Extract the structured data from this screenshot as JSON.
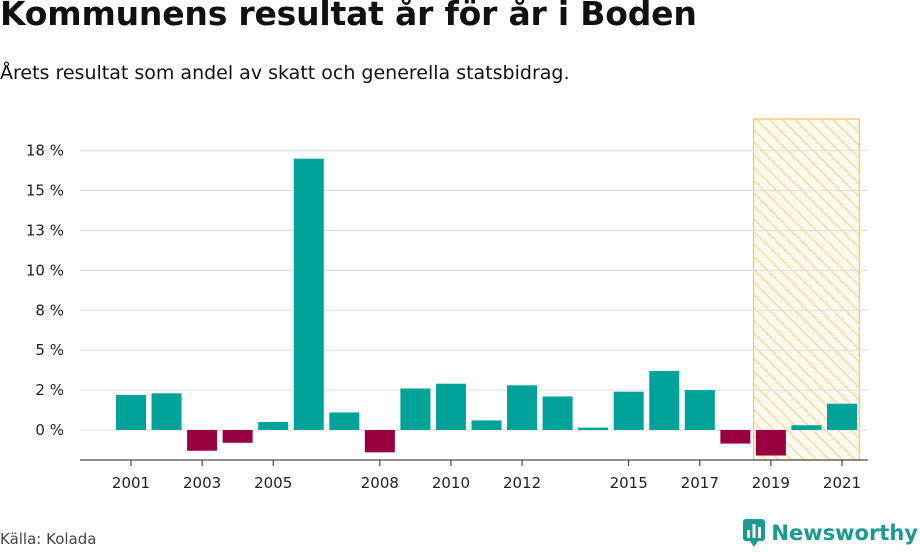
{
  "header": {
    "title": "Kommunens resultat år för år i Boden",
    "subtitle": "Årets resultat som andel av skatt och generella statsbidrag."
  },
  "footer": {
    "source": "Källa: Kolada",
    "brand": "Newsworthy"
  },
  "colors": {
    "positive": "#00a39a",
    "negative": "#990040",
    "highlight": "#f7c35c",
    "grid": "#dddddd"
  },
  "chart_data": {
    "type": "bar",
    "x": [
      2001,
      2002,
      2003,
      2004,
      2005,
      2006,
      2007,
      2008,
      2009,
      2010,
      2011,
      2012,
      2013,
      2014,
      2015,
      2016,
      2017,
      2018,
      2019,
      2020,
      2021
    ],
    "values": [
      2.2,
      2.3,
      -1.3,
      -0.8,
      0.5,
      17.0,
      1.1,
      -1.4,
      2.6,
      2.9,
      0.6,
      2.8,
      2.1,
      0.15,
      2.4,
      3.7,
      2.5,
      -0.85,
      -1.6,
      0.3,
      1.65
    ],
    "x_tick_labels": [
      "2001",
      "2003",
      "2005",
      "2008",
      "2010",
      "2012",
      "2015",
      "2017",
      "2019",
      "2021"
    ],
    "y_tick_labels": [
      "0 %",
      "2 %",
      "5 %",
      "8 %",
      "10 %",
      "13 %",
      "15 %",
      "18 %"
    ],
    "ylim": [
      -2,
      19
    ],
    "grid": true,
    "highlight_years": [
      2019,
      2020,
      2021
    ]
  }
}
